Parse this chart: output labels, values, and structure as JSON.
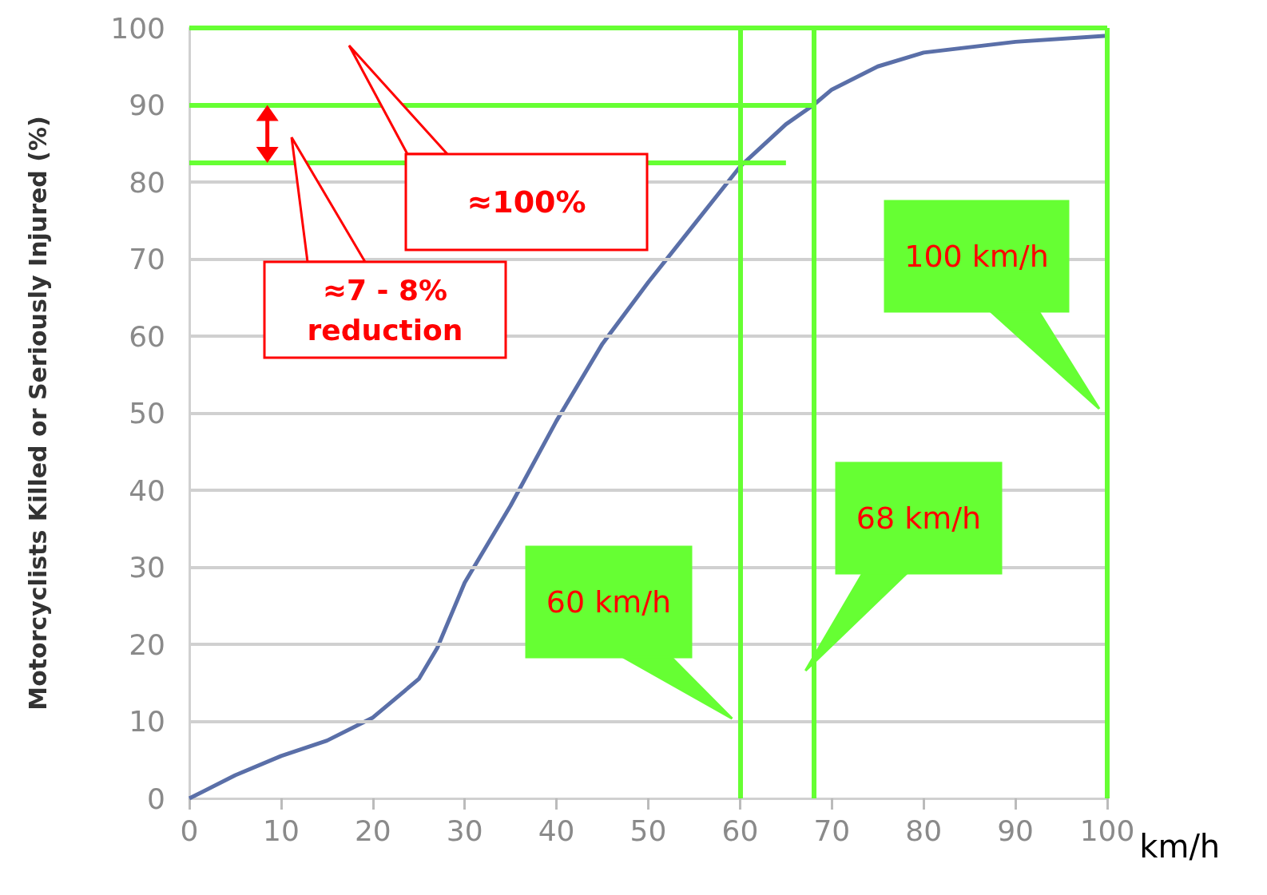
{
  "chart_data": {
    "type": "line",
    "ylabel": "Motorcyclists Killed or Seriously Injured (%)",
    "xlabel": "km/h",
    "x": [
      0,
      5,
      10,
      15,
      20,
      25,
      27,
      30,
      35,
      40,
      45,
      50,
      55,
      60,
      65,
      68,
      70,
      75,
      80,
      90,
      100
    ],
    "series": [
      {
        "color": "#5a6fa8",
        "values": [
          0,
          3,
          5.5,
          7.5,
          10.5,
          15.5,
          19.5,
          28,
          38,
          49,
          59,
          67,
          74.5,
          82,
          87.5,
          90,
          92,
          95,
          96.8,
          98.2,
          99
        ]
      }
    ],
    "xlim": [
      0,
      100
    ],
    "xticks": [
      0,
      10,
      20,
      30,
      40,
      50,
      60,
      70,
      80,
      90,
      100
    ],
    "ylim": [
      0,
      100
    ],
    "yticks": [
      0,
      10,
      20,
      30,
      40,
      50,
      60,
      70,
      80,
      90,
      100
    ],
    "grid": "y",
    "marker": "none",
    "line_style": "solid",
    "ref_lines": [
      {
        "axis": "y",
        "value": 100,
        "color": "#66ff33"
      },
      {
        "axis": "y",
        "value": 90,
        "color": "#66ff33"
      },
      {
        "axis": "y",
        "value": 82.5,
        "color": "#66ff33"
      },
      {
        "axis": "x",
        "value": 60,
        "label": "60 km/h",
        "color": "#66ff33"
      },
      {
        "axis": "x",
        "value": 68,
        "label": "68 km/h",
        "color": "#66ff33"
      },
      {
        "axis": "x",
        "value": 100,
        "label": "100 km/h",
        "color": "#66ff33"
      }
    ],
    "annotations": [
      "≈100%",
      "≈7 - 8% reduction"
    ]
  }
}
